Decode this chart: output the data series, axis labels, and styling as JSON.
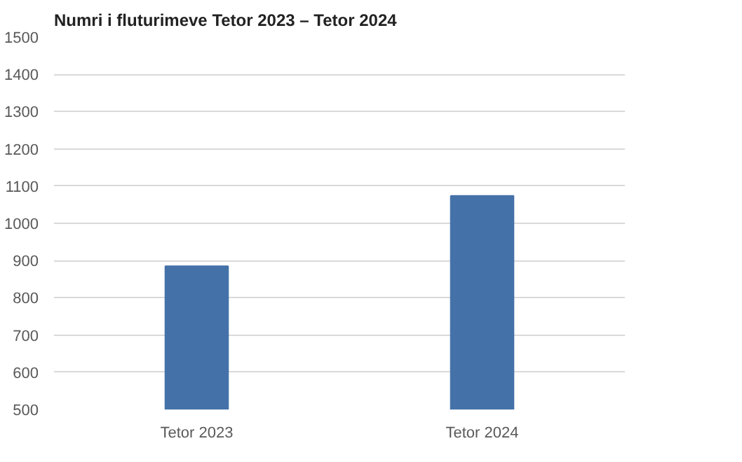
{
  "chart_data": {
    "type": "bar",
    "title": "Numri i fluturimeve Tetor 2023 – Tetor 2024",
    "categories": [
      "Tetor 2023",
      "Tetor 2024"
    ],
    "values": [
      885,
      1074
    ],
    "color": "#4472a8",
    "ylim": [
      500,
      1500
    ],
    "yticks": [
      500,
      600,
      700,
      800,
      900,
      1000,
      1100,
      1200,
      1300,
      1400,
      1500
    ],
    "grid": "y"
  }
}
